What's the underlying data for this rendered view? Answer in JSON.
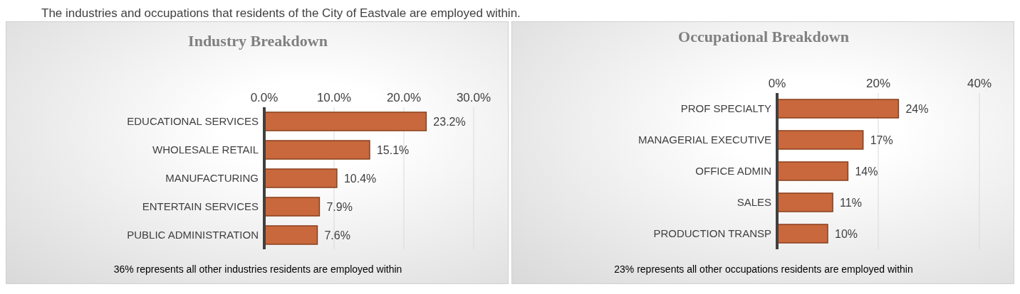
{
  "chart_data": [
    {
      "type": "bar",
      "orientation": "horizontal",
      "title": "Industry Breakdown",
      "categories": [
        "EDUCATIONAL SERVICES",
        "WHOLESALE RETAIL",
        "MANUFACTURING",
        "ENTERTAIN SERVICES",
        "PUBLIC ADMINISTRATION"
      ],
      "values": [
        23.2,
        15.1,
        10.4,
        7.9,
        7.6
      ],
      "value_labels": [
        "23.2%",
        "15.1%",
        "10.4%",
        "7.9%",
        "7.6%"
      ],
      "color": "#c8683c",
      "xlim": [
        0,
        30
      ],
      "xticks": [
        {
          "value": 0,
          "label": "0.0%"
        },
        {
          "value": 10,
          "label": "10.0%"
        },
        {
          "value": 20,
          "label": "20.0%"
        },
        {
          "value": 30,
          "label": "30.0%"
        }
      ],
      "grid": "x",
      "legend": false,
      "annotations": [
        "The industries and occupations that residents of the City of Eastvale are employed within.",
        "36% represents all other industries residents are employed within"
      ]
    },
    {
      "type": "bar",
      "orientation": "horizontal",
      "title": "Occupational Breakdown",
      "categories": [
        "PROF SPECIALTY",
        "MANAGERIAL EXECUTIVE",
        "OFFICE ADMIN",
        "SALES",
        "PRODUCTION TRANSP"
      ],
      "values": [
        24,
        17,
        14,
        11,
        10
      ],
      "value_labels": [
        "24%",
        "17%",
        "14%",
        "11%",
        "10%"
      ],
      "color": "#c8683c",
      "xlim": [
        0,
        40
      ],
      "xticks": [
        {
          "value": 0,
          "label": "0%"
        },
        {
          "value": 20,
          "label": "20%"
        },
        {
          "value": 40,
          "label": "40%"
        }
      ],
      "grid": "x",
      "legend": false,
      "annotations": [
        "23% represents all other occupations residents are employed within"
      ]
    }
  ]
}
